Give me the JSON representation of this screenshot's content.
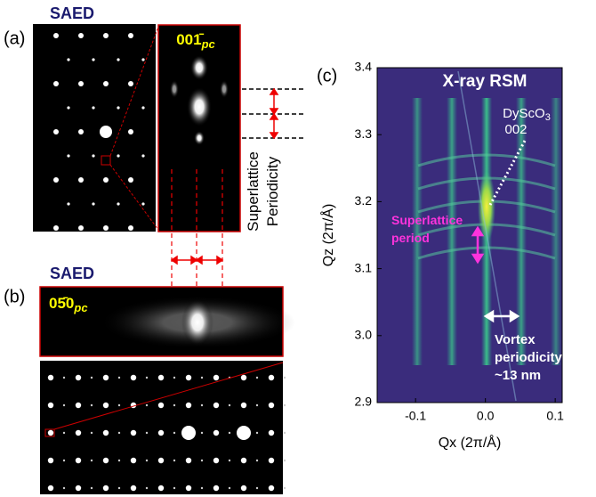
{
  "panel_a": {
    "label": "(a)",
    "title": "SAED",
    "zone": {
      "main": "001̄",
      "sub": "pc"
    },
    "annotation": "Superlattice Periodicity"
  },
  "panel_b": {
    "label": "(b)",
    "title": "SAED",
    "zone": {
      "main": "05̄0",
      "sub": "pc"
    }
  },
  "panel_c": {
    "label": "(c)",
    "title": "X-ray RSM",
    "xlabel": "Qx (2π/Å)",
    "ylabel": "Qz (2π/Å)",
    "xlim": [
      -0.155,
      0.11
    ],
    "ylim": [
      2.9,
      3.4
    ],
    "xticks": [
      -0.1,
      {
        "value": 0.0,
        "label": "0.0"
      },
      0.1
    ],
    "yticks": [
      2.9,
      {
        "value": 3.0,
        "label": "3.0"
      },
      3.1,
      3.2,
      3.3,
      3.4
    ],
    "peak_label": {
      "main": "DyScO",
      "sub": "3",
      "line2": "002"
    },
    "superlattice_label": "Superlattice period",
    "vortex_label": [
      "Vortex",
      "periodicity",
      "~13 nm"
    ]
  }
}
